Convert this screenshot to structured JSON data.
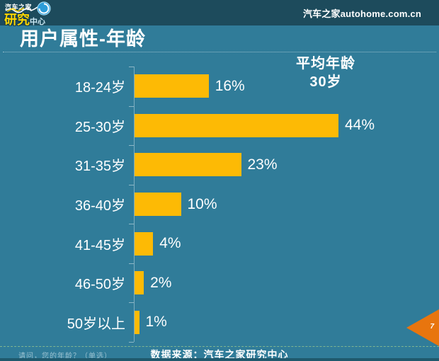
{
  "logo": {
    "top_text": "汽车之家",
    "main_text": "研究",
    "sub_text": "中心"
  },
  "topbar": {
    "site_url": "汽车之家autohome.com.cn"
  },
  "page": {
    "title": "用户属性-年龄",
    "page_number": "7"
  },
  "annotation": {
    "line1": "平均年龄",
    "line2": "30岁"
  },
  "chart_data": {
    "type": "bar",
    "orientation": "horizontal",
    "title": "用户属性-年龄",
    "categories": [
      "18-24岁",
      "25-30岁",
      "31-35岁",
      "36-40岁",
      "41-45岁",
      "46-50岁",
      "50岁以上"
    ],
    "values": [
      16,
      44,
      23,
      10,
      4,
      2,
      1
    ],
    "value_labels": [
      "16%",
      "44%",
      "23%",
      "10%",
      "4%",
      "2%",
      "1%"
    ],
    "annotation": "平均年龄 30岁",
    "bar_color": "#fdba05",
    "xlim": [
      0,
      45
    ],
    "grid": false,
    "legend": false
  },
  "footer": {
    "question": "请问，您的年龄？（单选）",
    "source": "数据来源：汽车之家研究中心"
  },
  "colors": {
    "background": "#307c99",
    "header_bar": "#1d4b5c",
    "bar": "#fdba05",
    "arrow": "#e8750e",
    "logo_yellow": "#ffd800",
    "bottom_strip": "#1f596d"
  }
}
